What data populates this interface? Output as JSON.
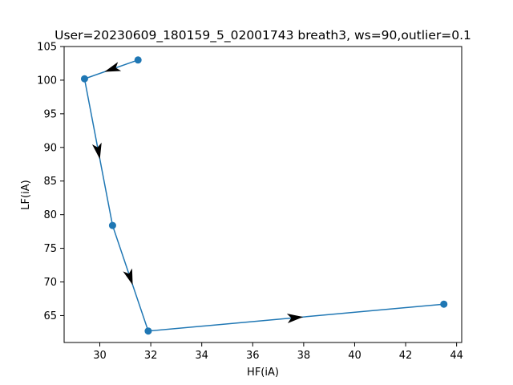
{
  "chart_data": {
    "type": "line",
    "title": "User=20230609_180159_5_02001743 breath3, ws=90,outlier=0.1",
    "xlabel": "HF(iA)",
    "ylabel": "LF(iA)",
    "xlim": [
      28.6,
      44.2
    ],
    "ylim": [
      61.0,
      105.0
    ],
    "x_ticks": [
      30,
      32,
      34,
      36,
      38,
      40,
      42,
      44
    ],
    "y_ticks": [
      65,
      70,
      75,
      80,
      85,
      90,
      95,
      100,
      105
    ],
    "grid": false,
    "legend": "none",
    "series": [
      {
        "color": "#1f77b4",
        "marker": "circle",
        "points": [
          {
            "x": 31.5,
            "y": 103.0
          },
          {
            "x": 29.4,
            "y": 100.2
          },
          {
            "x": 30.5,
            "y": 78.4
          },
          {
            "x": 31.9,
            "y": 62.7
          },
          {
            "x": 43.5,
            "y": 66.7
          }
        ]
      }
    ],
    "arrows": {
      "color": "#000000",
      "note_positions_are_segment_midpoints": true
    }
  }
}
